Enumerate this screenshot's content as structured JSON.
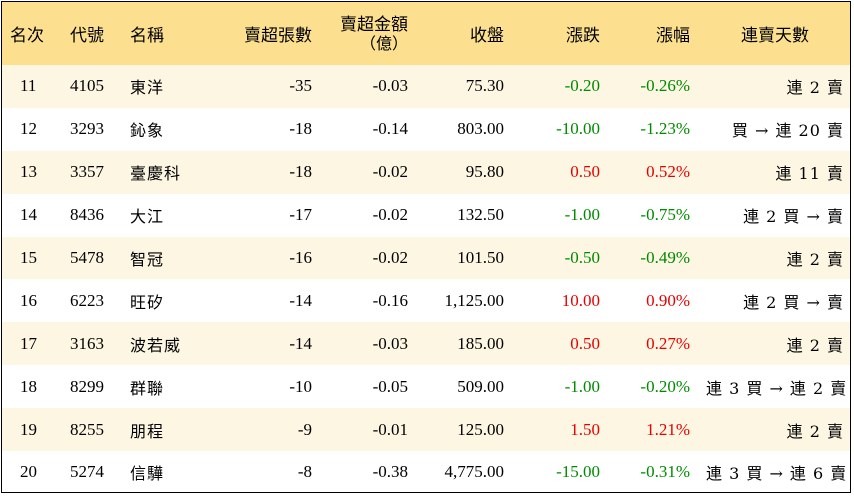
{
  "colors": {
    "header_bg": "#fce090",
    "stripe_bg": "#fdf6e3",
    "up": "#e60000",
    "down": "#008a00"
  },
  "headers": {
    "rank": "名次",
    "code": "代號",
    "name": "名稱",
    "net_lots": "賣超張數",
    "net_amount_line1": "賣超金額",
    "net_amount_line2": "（億）",
    "close": "收盤",
    "change": "漲跌",
    "pct": "漲幅",
    "streak": "連賣天數"
  },
  "rows": [
    {
      "rank": "11",
      "code": "4105",
      "name": "東洋",
      "net_lots": "-35",
      "net_amount": "-0.03",
      "close": "75.30",
      "change": "-0.20",
      "pct": "-0.26%",
      "dir": "down",
      "streak": "連 2 賣"
    },
    {
      "rank": "12",
      "code": "3293",
      "name": "鈊象",
      "net_lots": "-18",
      "net_amount": "-0.14",
      "close": "803.00",
      "change": "-10.00",
      "pct": "-1.23%",
      "dir": "down",
      "streak": "買 → 連 20 賣"
    },
    {
      "rank": "13",
      "code": "3357",
      "name": "臺慶科",
      "net_lots": "-18",
      "net_amount": "-0.02",
      "close": "95.80",
      "change": "0.50",
      "pct": "0.52%",
      "dir": "up",
      "streak": "連 11 賣"
    },
    {
      "rank": "14",
      "code": "8436",
      "name": "大江",
      "net_lots": "-17",
      "net_amount": "-0.02",
      "close": "132.50",
      "change": "-1.00",
      "pct": "-0.75%",
      "dir": "down",
      "streak": "連 2 買 → 賣"
    },
    {
      "rank": "15",
      "code": "5478",
      "name": "智冠",
      "net_lots": "-16",
      "net_amount": "-0.02",
      "close": "101.50",
      "change": "-0.50",
      "pct": "-0.49%",
      "dir": "down",
      "streak": "連 2 賣"
    },
    {
      "rank": "16",
      "code": "6223",
      "name": "旺矽",
      "net_lots": "-14",
      "net_amount": "-0.16",
      "close": "1,125.00",
      "change": "10.00",
      "pct": "0.90%",
      "dir": "up",
      "streak": "連 2 買 → 賣"
    },
    {
      "rank": "17",
      "code": "3163",
      "name": "波若威",
      "net_lots": "-14",
      "net_amount": "-0.03",
      "close": "185.00",
      "change": "0.50",
      "pct": "0.27%",
      "dir": "up",
      "streak": "連 2 賣"
    },
    {
      "rank": "18",
      "code": "8299",
      "name": "群聯",
      "net_lots": "-10",
      "net_amount": "-0.05",
      "close": "509.00",
      "change": "-1.00",
      "pct": "-0.20%",
      "dir": "down",
      "streak": "連 3 買 → 連 2 賣"
    },
    {
      "rank": "19",
      "code": "8255",
      "name": "朋程",
      "net_lots": "-9",
      "net_amount": "-0.01",
      "close": "125.00",
      "change": "1.50",
      "pct": "1.21%",
      "dir": "up",
      "streak": "連 2 賣"
    },
    {
      "rank": "20",
      "code": "5274",
      "name": "信驊",
      "net_lots": "-8",
      "net_amount": "-0.38",
      "close": "4,775.00",
      "change": "-15.00",
      "pct": "-0.31%",
      "dir": "down",
      "streak": "連 3 買 → 連 6 賣"
    }
  ]
}
